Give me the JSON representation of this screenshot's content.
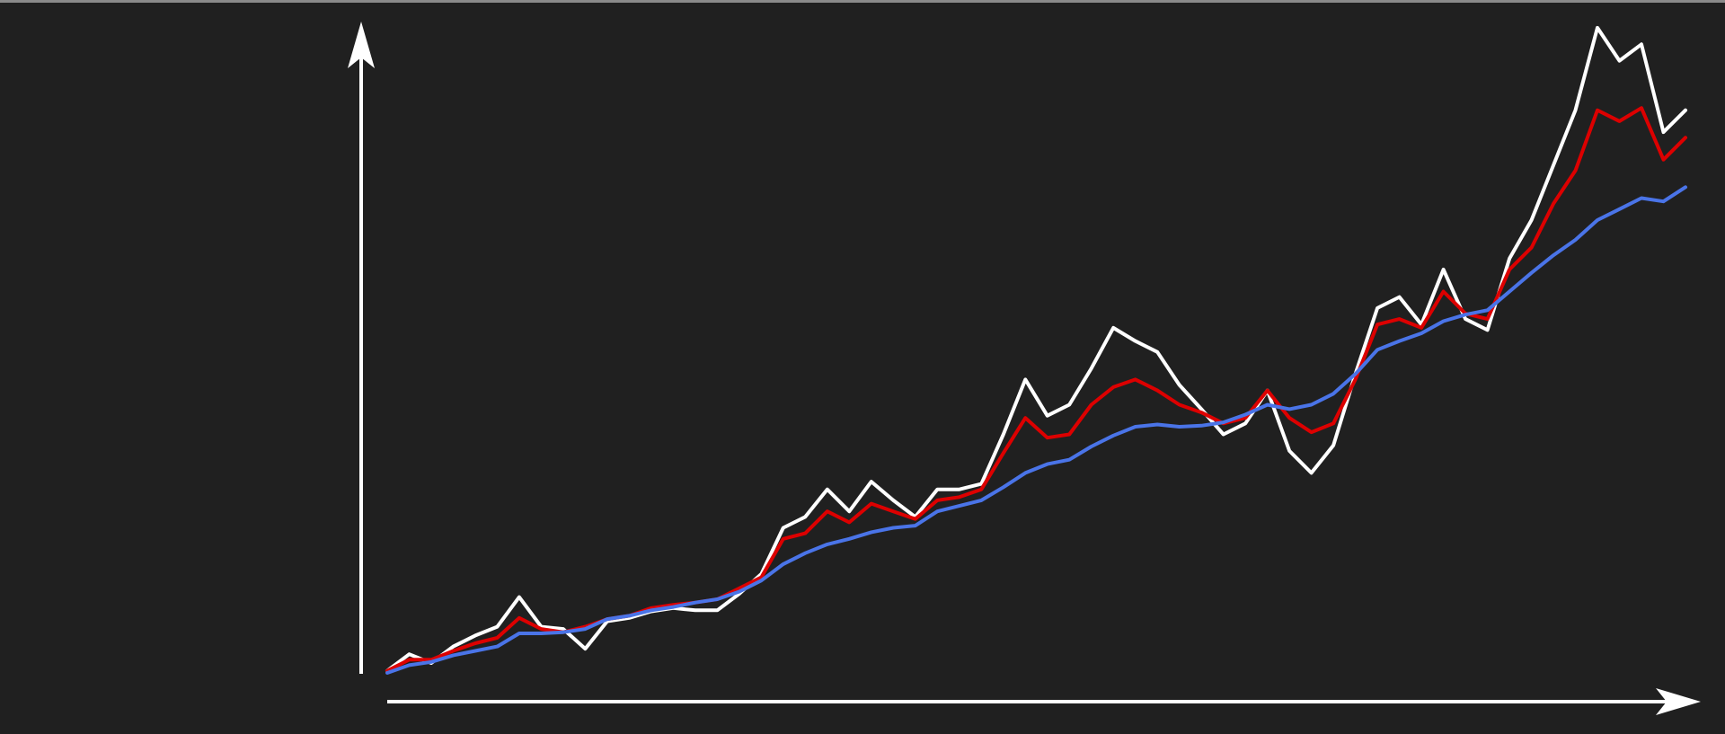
{
  "chart_data": {
    "type": "line",
    "ylim": [
      0,
      600
    ],
    "series": [
      {
        "color": "#ffffff",
        "values": [
          2,
          17,
          9,
          24,
          34,
          42,
          69,
          42,
          40,
          22,
          47,
          50,
          56,
          59,
          57,
          57,
          72,
          90,
          132,
          142,
          167,
          147,
          174,
          157,
          142,
          167,
          167,
          172,
          217,
          267,
          234,
          244,
          277,
          314,
          302,
          292,
          262,
          240,
          217,
          227,
          257,
          202,
          182,
          207,
          272,
          332,
          342,
          317,
          367,
          322,
          312,
          377,
          412,
          462,
          512,
          587,
          557,
          572,
          492,
          512
        ]
      },
      {
        "color": "#dd0000",
        "values": [
          2,
          12,
          12,
          20,
          27,
          32,
          50,
          40,
          37,
          42,
          49,
          52,
          59,
          62,
          64,
          67,
          77,
          87,
          122,
          127,
          147,
          137,
          154,
          147,
          140,
          157,
          160,
          167,
          200,
          232,
          214,
          217,
          244,
          260,
          267,
          257,
          244,
          237,
          227,
          232,
          257,
          232,
          219,
          227,
          267,
          317,
          322,
          314,
          347,
          327,
          322,
          367,
          387,
          427,
          457,
          512,
          502,
          514,
          467,
          487
        ]
      },
      {
        "color": "#4a74e8",
        "values": [
          0,
          7,
          10,
          16,
          20,
          24,
          36,
          36,
          37,
          40,
          49,
          52,
          57,
          60,
          64,
          67,
          74,
          84,
          99,
          109,
          117,
          122,
          128,
          132,
          134,
          147,
          152,
          157,
          169,
          182,
          190,
          194,
          206,
          216,
          224,
          226,
          224,
          225,
          228,
          235,
          244,
          240,
          244,
          254,
          272,
          294,
          302,
          309,
          320,
          326,
          330,
          347,
          364,
          380,
          394,
          412,
          422,
          432,
          429,
          442
        ]
      }
    ]
  }
}
